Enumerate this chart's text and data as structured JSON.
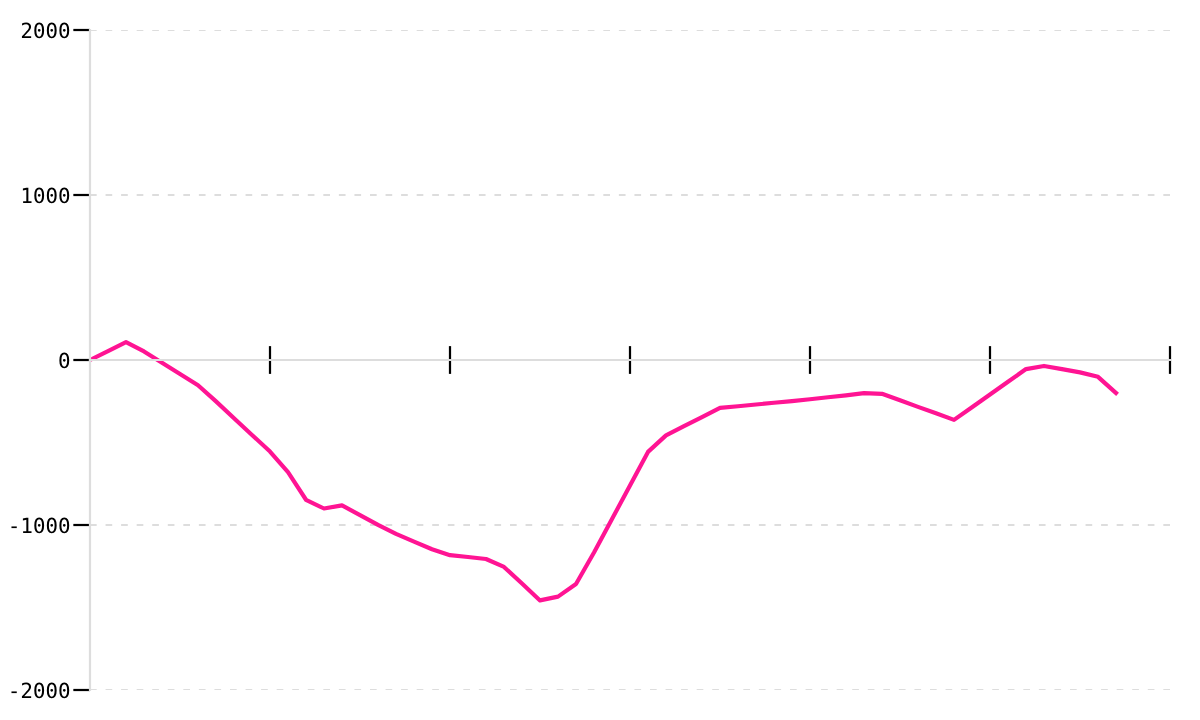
{
  "chart_data": {
    "type": "line",
    "categories": [
      null,
      null,
      null,
      null,
      null,
      null,
      null,
      null,
      null,
      null,
      null,
      null,
      null,
      null,
      null,
      null,
      null,
      null,
      null,
      null,
      null,
      null,
      null,
      null,
      null,
      null,
      null,
      null,
      null,
      null,
      null,
      null,
      null,
      null,
      null,
      null,
      null,
      null,
      null,
      null,
      null,
      null,
      null,
      null,
      null,
      null,
      null,
      null,
      null,
      null,
      null,
      null,
      null,
      null,
      null,
      null,
      null,
      null
    ],
    "series": [
      {
        "color": "#ff1493",
        "values": [
          0,
          54,
          108,
          52,
          -17,
          -85,
          -153,
          -251,
          -353,
          -454,
          -555,
          -680,
          -847,
          -900,
          -881,
          -940,
          -999,
          -1054,
          -1101,
          -1147,
          -1183,
          -1194,
          -1206,
          -1254,
          -1355,
          -1457,
          -1434,
          -1358,
          -1167,
          -964,
          -760,
          -557,
          -457,
          -401,
          -346,
          -290,
          -280,
          -270,
          -259,
          -249,
          -238,
          -226,
          -214,
          -201,
          -205,
          -244,
          -284,
          -323,
          -363,
          -286,
          -209,
          -132,
          -55,
          -36,
          -55,
          -75,
          -102,
          -200
        ]
      }
    ],
    "ylim": [
      -2000,
      2000
    ],
    "yticks": [
      -2000,
      -1000,
      0,
      1000,
      2000
    ],
    "grid": "y",
    "marker": "none",
    "line_style": "solid",
    "tick_labels": "y"
  }
}
